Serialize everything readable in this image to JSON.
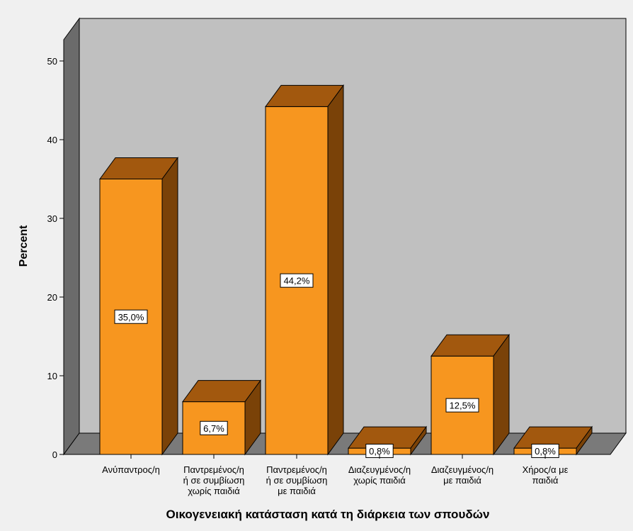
{
  "chart_data": {
    "type": "bar",
    "xlabel": "Οικογενειακή κατάσταση κατά τη διάρκεια των σπουδών",
    "ylabel": "Percent",
    "ylim": [
      0,
      50
    ],
    "yticks": [
      0,
      10,
      20,
      30,
      40,
      50
    ],
    "grid": false,
    "legend": "none",
    "three_d": true,
    "categories": [
      [
        "Ανύπαντρος/η"
      ],
      [
        "Παντρεμένος/η",
        "ή σε συμβίωση",
        "χωρίς παιδιά"
      ],
      [
        "Παντρεμένος/η",
        "ή σε συμβίωση",
        "με παιδιά"
      ],
      [
        "Διαζευγμένος/η",
        "χωρίς παιδιά"
      ],
      [
        "Διαζευγμένος/η",
        "με παιδιά"
      ],
      [
        "Χήρος/α με",
        "παιδιά"
      ]
    ],
    "values": [
      35.0,
      6.7,
      44.2,
      0.8,
      12.5,
      0.8
    ],
    "data_labels": [
      "35,0%",
      "6,7%",
      "44,2%",
      "0,8%",
      "12,5%",
      "0,8%"
    ],
    "colors": {
      "bar_front": "#f7961f",
      "bar_top": "#a2580e",
      "bar_side": "#7a4208",
      "back_wall": "#c0c0c0",
      "side_wall": "#6b6b6b",
      "floor": "#7a7a7a",
      "background": "#f0f0f0"
    }
  }
}
